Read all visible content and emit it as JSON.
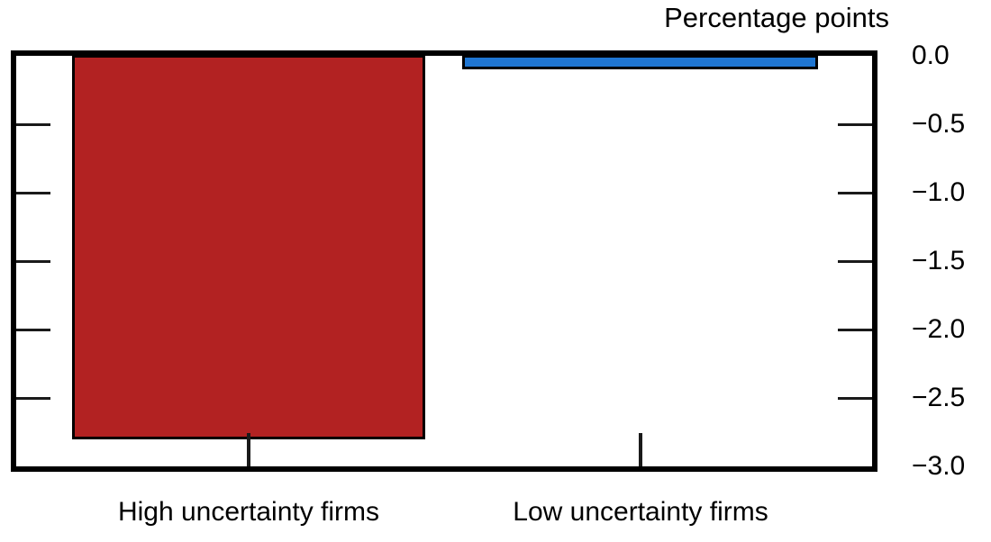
{
  "chart_data": {
    "type": "bar",
    "title": "Percentage points",
    "categories": [
      "High uncertainty firms",
      "Low uncertainty firms"
    ],
    "values": [
      -2.8,
      -0.1
    ],
    "bar_colors": [
      "#B22222",
      "#1F76D2"
    ],
    "outline_color": "#000000",
    "axis_color": "#000000",
    "ylim": [
      -3.0,
      0.0
    ],
    "yticks": [
      0.0,
      -0.5,
      -1.0,
      -1.5,
      -2.0,
      -2.5,
      -3.0
    ],
    "ytick_labels": [
      "0.0",
      "−0.5",
      "−1.0",
      "−1.5",
      "−2.0",
      "−2.5",
      "−3.0"
    ],
    "ytick_label_side": "right",
    "tick_direction": "in",
    "grid": false,
    "legend": null
  }
}
